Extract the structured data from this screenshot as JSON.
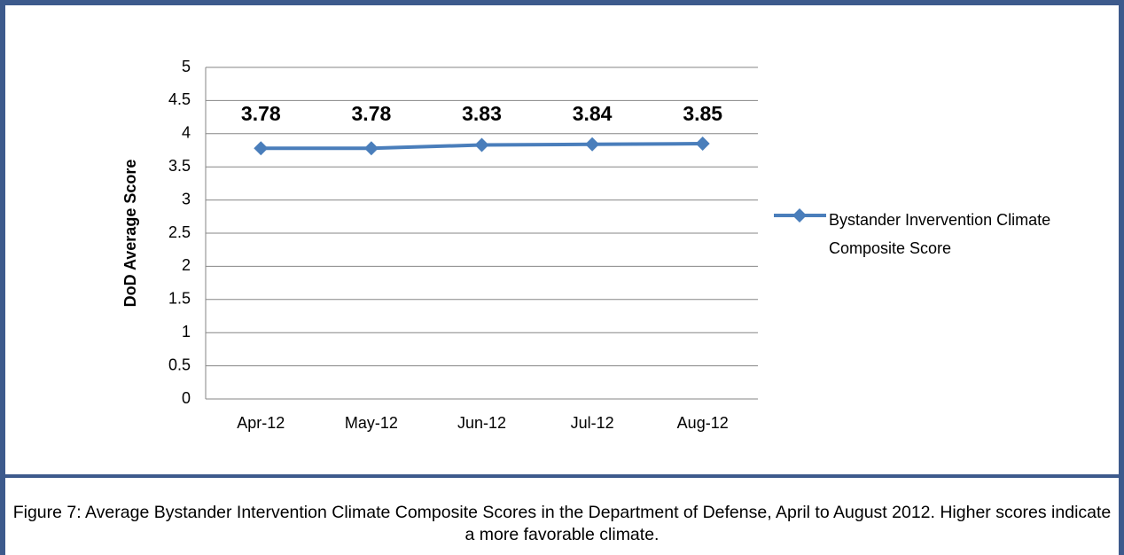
{
  "chart_data": {
    "type": "line",
    "caption": "Figure 7: Average Bystander Intervention Climate Composite Scores in the Department of Defense, April to August 2012.  Higher scores indicate a more favorable climate.",
    "y_label": "DoD Average Score",
    "categories": [
      "Apr-12",
      "May-12",
      "Jun-12",
      "Jul-12",
      "Aug-12"
    ],
    "series": [
      {
        "name": "Bystander Invervention Climate Composite Score",
        "color": "#4a7ebb",
        "values": [
          3.78,
          3.78,
          3.83,
          3.84,
          3.85
        ]
      }
    ],
    "ylim": [
      0,
      5
    ],
    "yticks": [
      0,
      0.5,
      1,
      1.5,
      2,
      2.5,
      3,
      3.5,
      4,
      4.5,
      5
    ],
    "grid": true,
    "legend": "right",
    "data_labels": true
  }
}
